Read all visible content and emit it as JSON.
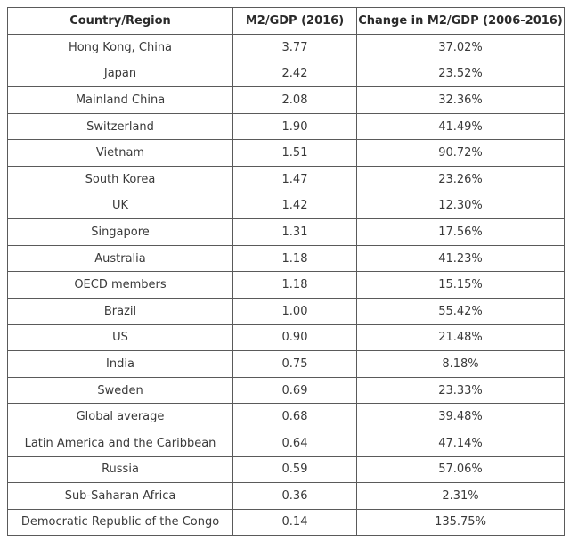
{
  "chart_data": {
    "type": "table",
    "columns": [
      "Country/Region",
      "M2/GDP (2016)",
      "Change in M2/GDP (2006-2016)"
    ],
    "rows": [
      [
        "Hong Kong, China",
        "3.77",
        "37.02%"
      ],
      [
        "Japan",
        "2.42",
        "23.52%"
      ],
      [
        "Mainland China",
        "2.08",
        "32.36%"
      ],
      [
        "Switzerland",
        "1.90",
        "41.49%"
      ],
      [
        "Vietnam",
        "1.51",
        "90.72%"
      ],
      [
        "South Korea",
        "1.47",
        "23.26%"
      ],
      [
        "UK",
        "1.42",
        "12.30%"
      ],
      [
        "Singapore",
        "1.31",
        "17.56%"
      ],
      [
        "Australia",
        "1.18",
        "41.23%"
      ],
      [
        "OECD members",
        "1.18",
        "15.15%"
      ],
      [
        "Brazil",
        "1.00",
        "55.42%"
      ],
      [
        "US",
        "0.90",
        "21.48%"
      ],
      [
        "India",
        "0.75",
        "8.18%"
      ],
      [
        "Sweden",
        "0.69",
        "23.33%"
      ],
      [
        "Global average",
        "0.68",
        "39.48%"
      ],
      [
        "Latin America and the Caribbean",
        "0.64",
        "47.14%"
      ],
      [
        "Russia",
        "0.59",
        "57.06%"
      ],
      [
        "Sub-Saharan Africa",
        "0.36",
        "2.31%"
      ],
      [
        "Democratic Republic of the Congo",
        "0.14",
        "135.75%"
      ]
    ]
  }
}
